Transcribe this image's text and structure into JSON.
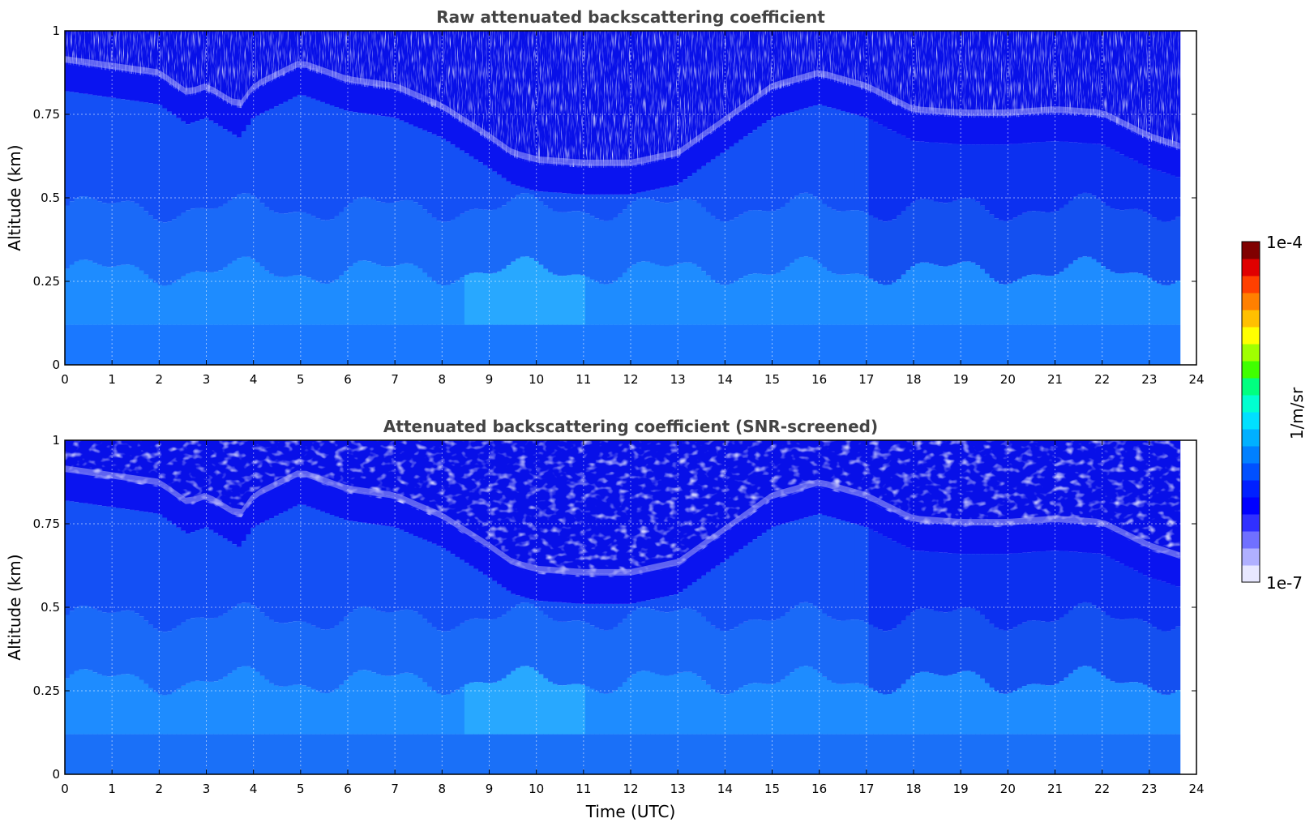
{
  "chart_data": [
    {
      "type": "heatmap",
      "title": "Raw attenuated backscattering coefficient",
      "ylabel": "Altitude (km)",
      "xlabel": "",
      "xlim": [
        0,
        24
      ],
      "ylim": [
        0,
        1
      ],
      "xticks": [
        "0",
        "1",
        "2",
        "3",
        "4",
        "5",
        "6",
        "7",
        "8",
        "9",
        "10",
        "11",
        "12",
        "13",
        "14",
        "15",
        "16",
        "17",
        "18",
        "19",
        "20",
        "21",
        "22",
        "23",
        "24"
      ],
      "yticks": [
        "0",
        "0.25",
        "0.5",
        "0.75",
        "1"
      ],
      "data_end_hour": 23.65,
      "grid": true,
      "layers": [
        {
          "name": "top_boundary_altitude_km",
          "x": [
            0,
            1,
            2,
            2.6,
            3,
            3.7,
            4,
            5,
            6,
            7,
            8,
            9,
            9.5,
            10,
            11,
            12,
            13,
            14,
            15,
            16,
            17,
            18,
            19,
            20,
            21,
            22,
            23,
            23.65
          ],
          "values": [
            0.88,
            0.86,
            0.84,
            0.78,
            0.8,
            0.74,
            0.8,
            0.87,
            0.82,
            0.8,
            0.74,
            0.65,
            0.6,
            0.58,
            0.57,
            0.57,
            0.6,
            0.7,
            0.8,
            0.84,
            0.8,
            0.73,
            0.72,
            0.72,
            0.73,
            0.72,
            0.65,
            0.62
          ]
        }
      ],
      "colorbar": {
        "min_label": "1e-7",
        "max_label": "1e-4",
        "label": "1/m/sr",
        "scale": "log"
      }
    },
    {
      "type": "heatmap",
      "title": "Attenuated backscattering coefficient (SNR-screened)",
      "ylabel": "Altitude (km)",
      "xlabel": "Time (UTC)",
      "xlim": [
        0,
        24
      ],
      "ylim": [
        0,
        1
      ],
      "xticks": [
        "0",
        "1",
        "2",
        "3",
        "4",
        "5",
        "6",
        "7",
        "8",
        "9",
        "10",
        "11",
        "12",
        "13",
        "14",
        "15",
        "16",
        "17",
        "18",
        "19",
        "20",
        "21",
        "22",
        "23",
        "24"
      ],
      "yticks": [
        "0",
        "0.25",
        "0.5",
        "0.75",
        "1"
      ],
      "data_end_hour": 23.65,
      "grid": true,
      "colorbar": {
        "min_label": "1e-7",
        "max_label": "1e-4",
        "label": "1/m/sr",
        "scale": "log"
      }
    }
  ],
  "colors": {
    "colormap": [
      "#e8e8ff",
      "#b0b0ff",
      "#7070ff",
      "#3030ff",
      "#0000ff",
      "#0020ff",
      "#0050ff",
      "#0080ff",
      "#00b0ff",
      "#00e0ff",
      "#00ffd0",
      "#00ff80",
      "#40ff00",
      "#a0ff00",
      "#ffff00",
      "#ffc000",
      "#ff8000",
      "#ff4000",
      "#e00000",
      "#800000"
    ],
    "deep_blue": "#0a14f0",
    "mid_blue": "#1450f5",
    "light_blue": "#1e8cff",
    "cyan_blue": "#28a8ff",
    "pale_lavender": "#a8a8f8",
    "title_color": "#444444"
  }
}
